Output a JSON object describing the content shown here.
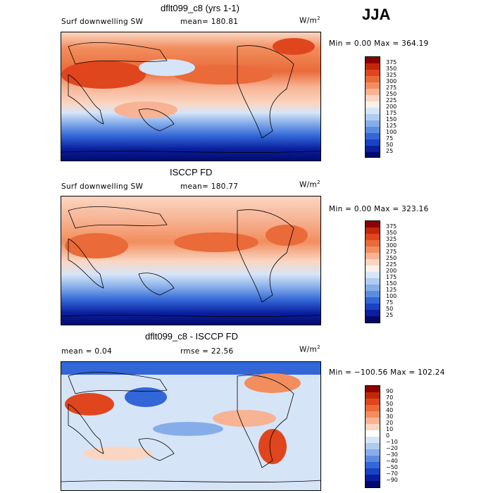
{
  "season": "JJA",
  "panels": [
    {
      "title": "dflt099_c8 (yrs 1-1)",
      "left_label": "Surf downwelling SW",
      "center_label": "mean=  180.81",
      "units": "W/m",
      "units_exp": "2",
      "stats": "Min =     0.00 Max = 364.19",
      "colorbar_labels": [
        "375",
        "350",
        "325",
        "300",
        "275",
        "250",
        "225",
        "200",
        "175",
        "150",
        "125",
        "100",
        "75",
        "50",
        "25"
      ]
    },
    {
      "title": "ISCCP FD",
      "left_label": "Surf downwelling SW",
      "center_label": "mean=  180.77",
      "units": "W/m",
      "units_exp": "2",
      "stats": "Min =     0.00 Max = 323.16",
      "colorbar_labels": [
        "375",
        "350",
        "325",
        "300",
        "275",
        "250",
        "225",
        "200",
        "175",
        "150",
        "125",
        "100",
        "75",
        "50",
        "25"
      ]
    },
    {
      "title": "dflt099_c8 - ISCCP FD",
      "left_label": "mean =     0.04",
      "center_label": "rmse =   22.56",
      "units": "W/m",
      "units_exp": "2",
      "stats": "Min = −100.56 Max = 102.24",
      "colorbar_labels": [
        "90",
        "70",
        "50",
        "40",
        "30",
        "20",
        "10",
        "0",
        "−10",
        "−20",
        "−30",
        "−40",
        "−50",
        "−70",
        "−90"
      ]
    }
  ],
  "palette_abs": [
    "#8b0000",
    "#c0280a",
    "#e0461e",
    "#ea6a3a",
    "#f28e5e",
    "#f7b394",
    "#fad6c2",
    "#fdf0e8",
    "#d6e4f8",
    "#b0cbf2",
    "#86adea",
    "#5c8ce0",
    "#3366d6",
    "#1942c4",
    "#0a1f9e",
    "#02086a"
  ],
  "palette_diff": [
    "#8b0000",
    "#c0280a",
    "#e0461e",
    "#ea6a3a",
    "#f28e5e",
    "#f7b394",
    "#fad6c2",
    "#ffffff",
    "#d6e4f8",
    "#b0cbf2",
    "#86adea",
    "#5c8ce0",
    "#3366d6",
    "#1942c4",
    "#0a1f9e",
    "#02086a"
  ]
}
